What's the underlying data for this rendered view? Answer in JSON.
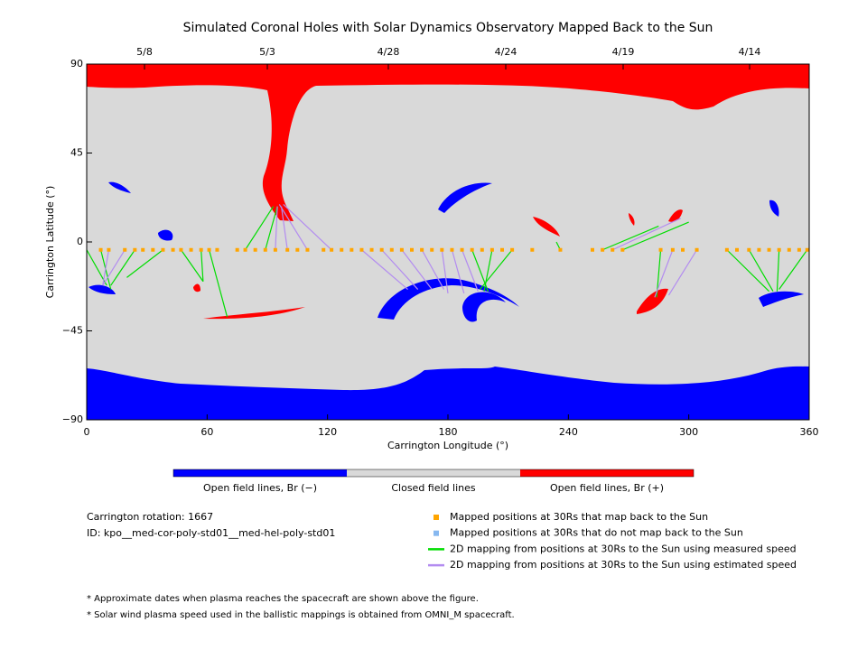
{
  "chart_data": {
    "type": "map",
    "title": "Simulated Coronal Holes with Solar Dynamics Observatory Mapped Back to the Sun",
    "x_label": "Carrington Longitude (°)",
    "y_label": "Carrington Latitude (°)",
    "xlim": [
      0,
      360
    ],
    "ylim": [
      -90,
      90
    ],
    "xticks": [
      0,
      60,
      120,
      180,
      240,
      300,
      360
    ],
    "yticks": [
      {
        "value": -90,
        "label": "−90"
      },
      {
        "value": -45,
        "label": "−45"
      },
      0,
      45,
      90
    ],
    "top_ticks": [
      {
        "value": 28.8,
        "label": "5/8"
      },
      {
        "value": 90,
        "label": "5/3"
      },
      {
        "value": 150.3,
        "label": "4/28"
      },
      {
        "value": 208.8,
        "label": "4/24"
      },
      {
        "value": 267.3,
        "label": "4/19"
      },
      {
        "value": 330.3,
        "label": "4/14"
      }
    ],
    "colorbar": [
      {
        "label": "Open field lines, Br (−)",
        "color": "#0000ff"
      },
      {
        "label": "Closed field lines",
        "color": "#d9d9d9"
      },
      {
        "label": "Open field lines, Br (+)",
        "color": "#ff0000"
      }
    ],
    "points": [
      {
        "name": "Mapped positions at 30Rs that map back to the Sun",
        "color": "#ffa500",
        "x": [
          7,
          11,
          19,
          24,
          28,
          33,
          38,
          43,
          47,
          52,
          57,
          61,
          65,
          75,
          79,
          84,
          89,
          94,
          100,
          105,
          110,
          118,
          122,
          127,
          132,
          137,
          142,
          147,
          152,
          157,
          162,
          167,
          172,
          177,
          182,
          187,
          192,
          197,
          202,
          207,
          212,
          222,
          236,
          252,
          257,
          262,
          267,
          286,
          292,
          297,
          304,
          319,
          324,
          330,
          335,
          340,
          345,
          350,
          355,
          359
        ],
        "y": [
          -4,
          -4,
          -4,
          -4,
          -4,
          -4,
          -4,
          -4,
          -4,
          -4,
          -4,
          -4,
          -4,
          -4,
          -4,
          -4,
          -4,
          -4,
          -4,
          -4,
          -4,
          -4,
          -4,
          -4,
          -4,
          -4,
          -4,
          -4,
          -4,
          -4,
          -4,
          -4,
          -4,
          -4,
          -4,
          -4,
          -4,
          -4,
          -4,
          -4,
          -4,
          -4,
          -4,
          -4,
          -4,
          -4,
          -4,
          -4,
          -4,
          -4,
          -4,
          -4,
          -4,
          -4,
          -4,
          -4,
          -4,
          -4,
          -4,
          -4
        ]
      },
      {
        "name": "Mapped positions at 30Rs that do not map back to the Sun",
        "color": "#87b8f0",
        "x": [],
        "y": []
      }
    ],
    "mappings": [
      {
        "name": "2D mapping from positions at 30Rs to the Sun using measured speed",
        "color": "#00dd00",
        "x0": [
          0,
          7,
          24,
          38,
          47,
          57,
          61,
          79,
          89,
          192,
          202,
          212,
          236,
          257,
          267,
          286,
          319,
          330,
          345,
          359
        ],
        "y0": [
          -4,
          -4,
          -4,
          -4,
          -4,
          -4,
          -4,
          -4,
          -4,
          -4,
          -4,
          -4,
          -4,
          -4,
          -4,
          -4,
          -4,
          -4,
          -4,
          -4
        ],
        "x1": [
          10,
          12,
          12,
          20,
          58,
          58,
          70,
          93,
          95,
          200,
          198,
          196,
          234,
          285,
          300,
          284,
          340,
          342,
          344,
          345
        ],
        "y1": [
          -22,
          -24,
          -22,
          -18,
          -20,
          -20,
          -38,
          18,
          18,
          -25,
          -25,
          -24,
          0,
          8,
          10,
          -28,
          -25,
          -25,
          -25,
          -24
        ]
      },
      {
        "name": "2D mapping from positions at 30Rs to the Sun using estimated speed",
        "color": "#b38cf0",
        "x0": [
          11,
          19,
          94,
          100,
          110,
          122,
          137,
          147,
          157,
          167,
          177,
          182,
          187,
          262,
          292,
          304
        ],
        "y0": [
          -4,
          -4,
          -4,
          -4,
          -4,
          -4,
          -4,
          -4,
          -4,
          -4,
          -4,
          -4,
          -4,
          -4,
          -4,
          -4
        ],
        "x1": [
          8,
          8,
          95,
          97,
          96,
          98,
          160,
          165,
          172,
          178,
          180,
          188,
          195,
          296,
          283,
          290
        ],
        "y1": [
          -22,
          -22,
          18,
          18,
          19,
          19,
          -24,
          -24,
          -24,
          -24,
          -26,
          -26,
          -25,
          12,
          -28,
          -27
        ]
      }
    ],
    "info": [
      "Carrington rotation: 1667",
      "ID: kpo__med-cor-poly-std01__med-hel-poly-std01"
    ],
    "footnotes": [
      "* Approximate dates when plasma reaches the spacecraft are shown above the figure.",
      "* Solar wind plasma speed used in the ballistic mappings is obtained from OMNI_M spacecraft."
    ]
  }
}
